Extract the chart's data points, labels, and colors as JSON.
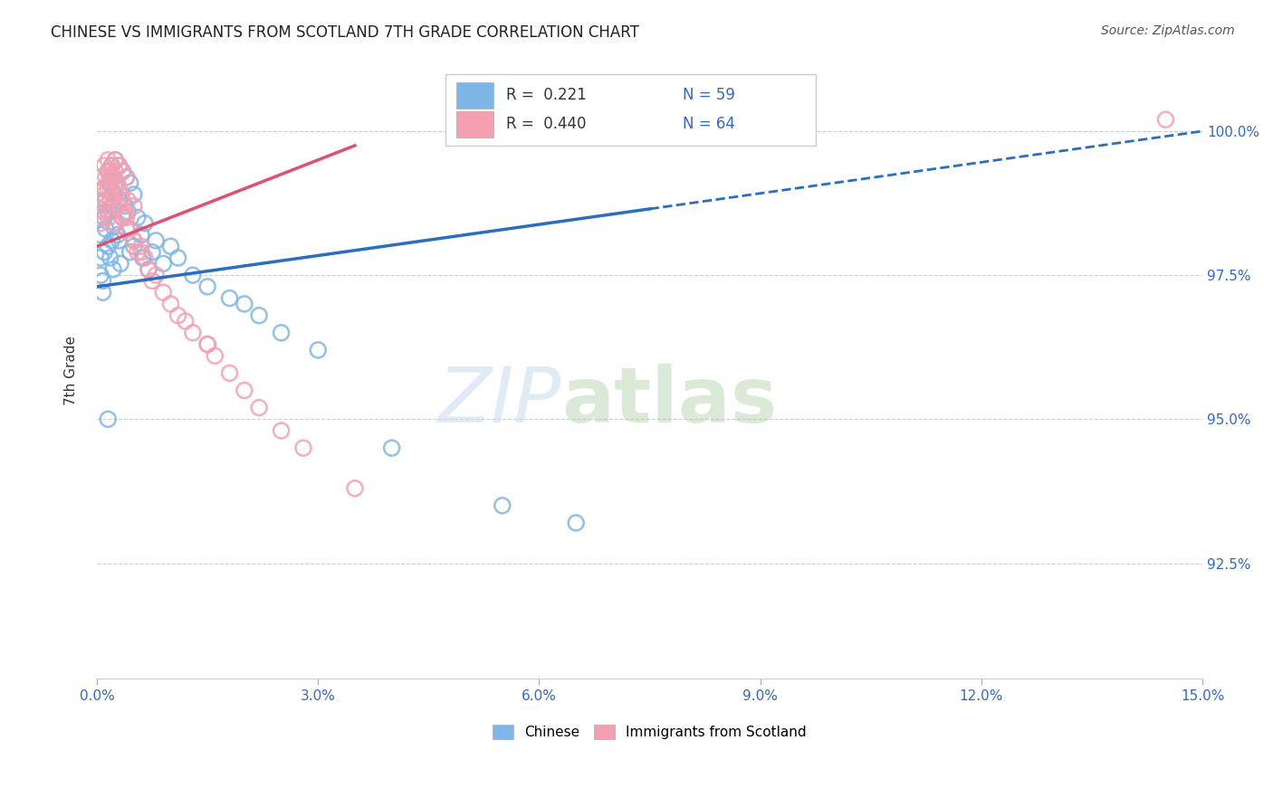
{
  "title": "CHINESE VS IMMIGRANTS FROM SCOTLAND 7TH GRADE CORRELATION CHART",
  "source": "Source: ZipAtlas.com",
  "ylabel": "7th Grade",
  "x_range": [
    0.0,
    15.0
  ],
  "y_range": [
    90.5,
    101.2
  ],
  "chinese_color": "#7EB6E8",
  "scotland_color": "#F4A0B0",
  "chinese_line_color": "#2A6FBF",
  "scotland_line_color": "#E05070",
  "background_color": "#FFFFFF",
  "r_chinese": 0.221,
  "n_chinese": 59,
  "r_scotland": 0.44,
  "n_scotland": 64,
  "chinese_x": [
    0.05,
    0.05,
    0.05,
    0.08,
    0.08,
    0.1,
    0.1,
    0.1,
    0.12,
    0.12,
    0.15,
    0.15,
    0.15,
    0.18,
    0.18,
    0.2,
    0.2,
    0.2,
    0.22,
    0.22,
    0.25,
    0.25,
    0.25,
    0.28,
    0.3,
    0.3,
    0.3,
    0.32,
    0.35,
    0.35,
    0.38,
    0.4,
    0.4,
    0.42,
    0.45,
    0.45,
    0.5,
    0.5,
    0.55,
    0.6,
    0.62,
    0.65,
    0.7,
    0.75,
    0.8,
    0.9,
    1.0,
    1.1,
    1.3,
    1.5,
    1.8,
    2.0,
    2.2,
    2.5,
    3.0,
    4.0,
    5.5,
    6.5,
    0.15
  ],
  "chinese_y": [
    98.2,
    97.8,
    97.5,
    97.4,
    97.2,
    99.0,
    98.5,
    97.9,
    98.8,
    98.3,
    99.3,
    98.6,
    98.0,
    99.1,
    97.8,
    99.4,
    98.7,
    98.1,
    98.9,
    97.6,
    99.5,
    99.0,
    98.4,
    98.2,
    99.4,
    98.8,
    98.1,
    97.7,
    99.3,
    98.5,
    98.7,
    99.2,
    98.3,
    98.6,
    99.1,
    97.9,
    98.9,
    98.0,
    98.5,
    98.2,
    97.8,
    98.4,
    97.6,
    97.9,
    98.1,
    97.7,
    98.0,
    97.8,
    97.5,
    97.3,
    97.1,
    97.0,
    96.8,
    96.5,
    96.2,
    94.5,
    93.5,
    93.2,
    95.0
  ],
  "scotland_x": [
    0.03,
    0.05,
    0.05,
    0.05,
    0.08,
    0.08,
    0.1,
    0.1,
    0.12,
    0.12,
    0.15,
    0.15,
    0.15,
    0.18,
    0.18,
    0.2,
    0.2,
    0.2,
    0.22,
    0.22,
    0.25,
    0.25,
    0.28,
    0.3,
    0.3,
    0.3,
    0.32,
    0.35,
    0.35,
    0.38,
    0.4,
    0.4,
    0.42,
    0.45,
    0.5,
    0.5,
    0.55,
    0.6,
    0.65,
    0.7,
    0.75,
    0.8,
    0.9,
    1.0,
    1.1,
    1.3,
    1.5,
    1.6,
    1.8,
    2.0,
    2.5,
    0.35,
    0.4,
    0.5,
    0.6,
    1.2,
    1.5,
    2.2,
    2.8,
    3.5,
    0.15,
    0.2,
    0.25,
    14.5
  ],
  "scotland_y": [
    98.5,
    99.2,
    98.8,
    98.4,
    99.0,
    98.6,
    99.4,
    98.9,
    99.2,
    98.7,
    99.5,
    99.1,
    98.5,
    99.3,
    98.8,
    99.4,
    99.0,
    98.6,
    99.2,
    98.4,
    99.5,
    98.9,
    99.1,
    99.4,
    99.0,
    98.7,
    98.9,
    99.3,
    98.8,
    98.6,
    99.2,
    98.5,
    98.8,
    98.3,
    98.7,
    98.1,
    97.9,
    98.0,
    97.8,
    97.6,
    97.4,
    97.5,
    97.2,
    97.0,
    96.8,
    96.5,
    96.3,
    96.1,
    95.8,
    95.5,
    94.8,
    98.5,
    98.3,
    98.1,
    97.9,
    96.7,
    96.3,
    95.2,
    94.5,
    93.8,
    99.0,
    99.2,
    99.3,
    100.2
  ]
}
